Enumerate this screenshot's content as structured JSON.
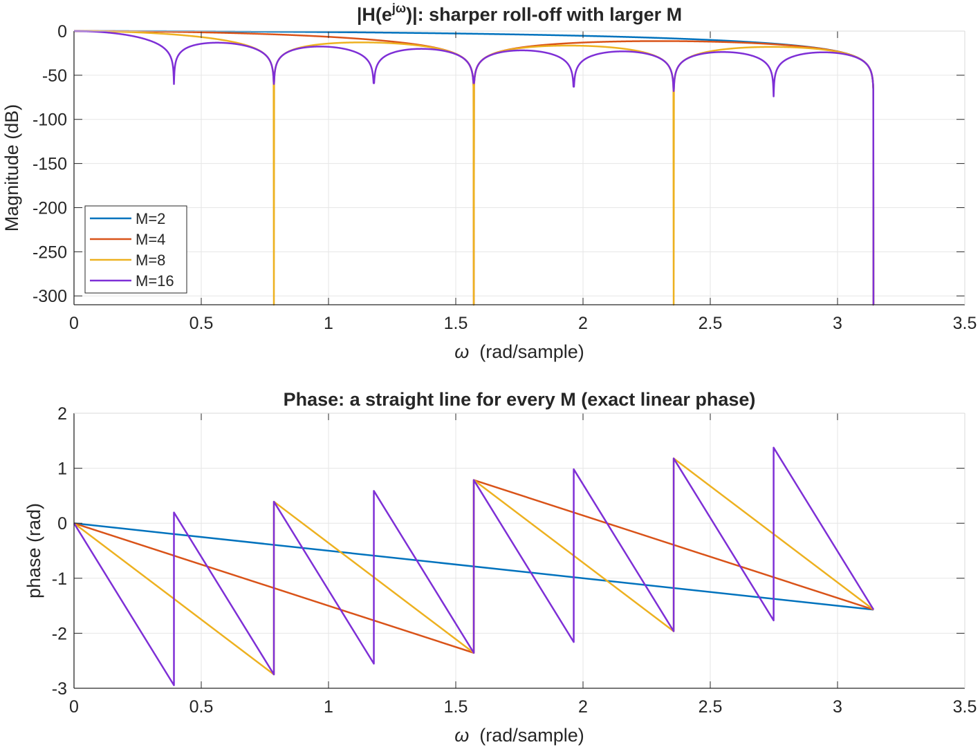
{
  "chart_data": [
    {
      "type": "line",
      "title": "|H(e^{jω})|:  sharper  roll-off  with  larger  M",
      "title_parts": {
        "pre": "|H(e",
        "sup": "jω",
        "post": ")|:  sharper  roll-off  with  larger  M"
      },
      "xlabel": "ω  (rad/sample)",
      "xlabel_parts": {
        "symbol": "ω",
        "rest": "  (rad/sample)"
      },
      "ylabel": "Magnitude (dB)",
      "xlim": [
        0,
        3.5
      ],
      "ylim": [
        -310,
        0
      ],
      "xticks": [
        0,
        0.5,
        1,
        1.5,
        2,
        2.5,
        3,
        3.5
      ],
      "xtick_labels": [
        "0",
        "0.5",
        "1",
        "1.5",
        "2",
        "2.5",
        "3",
        "3.5"
      ],
      "yticks": [
        0,
        -50,
        -100,
        -150,
        -200,
        -250,
        -300
      ],
      "ytick_labels": [
        "0",
        "-50",
        "-100",
        "-150",
        "-200",
        "-250",
        "-300"
      ],
      "grid": true,
      "legend": {
        "position": "bottom-left",
        "entries": [
          "M=2",
          "M=4",
          "M=8",
          "M=16"
        ]
      },
      "series": [
        {
          "name": "M=2",
          "color": "#0072BD",
          "M": 2,
          "x_range": [
            0,
            3.14159
          ],
          "values_desc": "20*log10|H|"
        },
        {
          "name": "M=4",
          "color": "#D95319",
          "M": 4,
          "x_range": [
            0,
            3.14159
          ]
        },
        {
          "name": "M=8",
          "color": "#EDB120",
          "M": 8,
          "x_range": [
            0,
            3.14159
          ]
        },
        {
          "name": "M=16",
          "color": "#7E2FD6",
          "M": 16,
          "x_range": [
            0,
            3.14159
          ]
        }
      ],
      "notable_points": [
        {
          "series": "M=16",
          "x": [
            0.393,
            0.785,
            1.178,
            1.571,
            1.963,
            2.356,
            2.749
          ],
          "y": [
            -60,
            -60,
            -59,
            -59,
            -63,
            -68,
            -74
          ]
        },
        {
          "series": "all",
          "x": 3.1416,
          "y": -310
        }
      ]
    },
    {
      "type": "line",
      "title": "Phase: a straight line for every M (exact linear phase)",
      "xlabel": "ω  (rad/sample)",
      "xlabel_parts": {
        "symbol": "ω",
        "rest": "  (rad/sample)"
      },
      "ylabel": "phase (rad)",
      "xlim": [
        0,
        3.5
      ],
      "ylim": [
        -3,
        2
      ],
      "xticks": [
        0,
        0.5,
        1,
        1.5,
        2,
        2.5,
        3,
        3.5
      ],
      "xtick_labels": [
        "0",
        "0.5",
        "1",
        "1.5",
        "2",
        "2.5",
        "3",
        "3.5"
      ],
      "yticks": [
        2,
        1,
        0,
        -1,
        -2,
        -3
      ],
      "ytick_labels": [
        "2",
        "1",
        "0",
        "-1",
        "-2",
        "-3"
      ],
      "grid": true,
      "series": [
        {
          "name": "M=2",
          "color": "#0072BD",
          "points": [
            [
              0,
              0
            ],
            [
              3.1416,
              -1.5708
            ]
          ]
        },
        {
          "name": "M=4",
          "color": "#D95319",
          "points": [
            [
              0,
              0
            ],
            [
              1.5708,
              -2.3562
            ],
            [
              1.5708,
              0.7854
            ],
            [
              3.1416,
              -1.5708
            ]
          ]
        },
        {
          "name": "M=8",
          "color": "#EDB120",
          "points": [
            [
              0,
              0
            ],
            [
              0.7854,
              -2.7489
            ],
            [
              0.7854,
              0.3927
            ],
            [
              1.5708,
              -2.3562
            ],
            [
              1.5708,
              0.7854
            ],
            [
              2.3562,
              -1.9635
            ],
            [
              2.3562,
              1.1781
            ],
            [
              3.1416,
              -1.5708
            ]
          ]
        },
        {
          "name": "M=16",
          "color": "#7E2FD6",
          "points": [
            [
              0,
              0
            ],
            [
              0.3927,
              -2.9452
            ],
            [
              0.3927,
              0.1963
            ],
            [
              0.7854,
              -2.7489
            ],
            [
              0.7854,
              0.3927
            ],
            [
              1.1781,
              -2.5525
            ],
            [
              1.1781,
              0.589
            ],
            [
              1.5708,
              -2.3562
            ],
            [
              1.5708,
              0.7854
            ],
            [
              1.9635,
              -2.1598
            ],
            [
              1.9635,
              0.9817
            ],
            [
              2.3562,
              -1.9635
            ],
            [
              2.3562,
              1.1781
            ],
            [
              2.7489,
              -1.7671
            ],
            [
              2.7489,
              1.3744
            ],
            [
              3.1416,
              -1.5708
            ]
          ]
        }
      ]
    }
  ]
}
